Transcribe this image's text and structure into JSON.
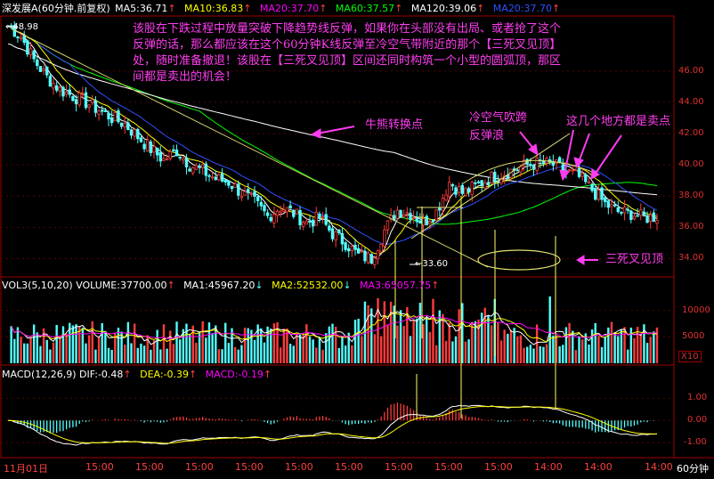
{
  "header": {
    "stock": "深发展A",
    "period": "(60分钟.前复权)",
    "ma5": "MA5:36.71",
    "ma10": "MA10:36.83",
    "ma20": "MA20:37.70",
    "ma60": "MA60:37.57",
    "ma120": "MA120:39.06",
    "extra": "MA20:37.70"
  },
  "vol_header": {
    "name": "VOL3(5,10,20)",
    "volume": "VOLUME:37700.00",
    "ma1": "MA1:45967.20",
    "ma2": "MA2:52532.00",
    "ma3": "MA3:65057.75"
  },
  "macd_header": {
    "name": "MACD(12,26,9)",
    "dif": "DIF:-0.48",
    "dea": "DEA:-0.39",
    "macd": "MACD:-0.19"
  },
  "annotations": {
    "main_text": [
      "该股在下跌过程中放量突破下降趋势线反弹，如果你在头部没有出局、或者抢了这个",
      "反弹的话，那么都应该在这个60分钟K线反弹至冷空气带附近的那个【三死叉见顶】",
      "处，随时准备撤退！该股在【三死叉见顶】区间还同时构筑一个小型的圆弧顶，那区",
      "间都是卖出的机会！"
    ],
    "turning_point": "牛熊转换点",
    "cold_air": [
      "冷空气吹跨",
      "反弹浪"
    ],
    "sell_points": "这几个地方都是卖点",
    "triple_dead_cross": "三死叉见顶"
  },
  "price_labels": {
    "high": "48.98",
    "low": "33.60"
  },
  "time_axis": [
    "11月01日",
    "15:00",
    "15:00",
    "15:00",
    "15:00",
    "15:00",
    "15:00",
    "15:00",
    "15:00",
    "15:00",
    "14:00",
    "14:00",
    "14:00"
  ],
  "period_label": "60分钟",
  "scale_label": "X10",
  "colors": {
    "up": "#ff3c3c",
    "down": "#54ffff",
    "ma5": "#ffffff",
    "ma10": "#ffff00",
    "ma20": "#ff00ff",
    "ma60": "#00ff00",
    "ma120": "#ffffff",
    "extra_line": "#3050ff",
    "annotation": "#ff3df0"
  },
  "chart_data": {
    "type": "candlestick",
    "price_axis": {
      "ticks": [
        34,
        36,
        38,
        40,
        42,
        44,
        46
      ],
      "ylim": [
        33.0,
        49.4
      ]
    },
    "volume_axis": {
      "ticks": [
        5000,
        10000
      ],
      "unit": "X10"
    },
    "macd_axis": {
      "ticks": [
        -1,
        0,
        1
      ]
    },
    "close_path": [
      [
        0,
        48.9
      ],
      [
        4,
        48.2
      ],
      [
        8,
        46.7
      ],
      [
        12,
        45.6
      ],
      [
        16,
        44.8
      ],
      [
        20,
        44.4
      ],
      [
        24,
        44.0
      ],
      [
        28,
        43.5
      ],
      [
        32,
        43.0
      ],
      [
        36,
        42.6
      ],
      [
        40,
        41.8
      ],
      [
        44,
        41.0
      ],
      [
        48,
        40.3
      ],
      [
        52,
        40.9
      ],
      [
        56,
        40.0
      ],
      [
        60,
        39.6
      ],
      [
        64,
        39.1
      ],
      [
        68,
        38.9
      ],
      [
        72,
        38.2
      ],
      [
        76,
        37.6
      ],
      [
        80,
        36.7
      ],
      [
        84,
        37.3
      ],
      [
        88,
        36.9
      ],
      [
        92,
        36.3
      ],
      [
        96,
        36.6
      ],
      [
        100,
        35.6
      ],
      [
        104,
        35.0
      ],
      [
        108,
        34.2
      ],
      [
        112,
        34.0
      ],
      [
        116,
        35.8
      ],
      [
        120,
        37.1
      ],
      [
        124,
        36.9
      ],
      [
        128,
        36.3
      ],
      [
        132,
        37.0
      ],
      [
        136,
        38.9
      ],
      [
        140,
        38.2
      ],
      [
        144,
        38.6
      ],
      [
        148,
        39.1
      ],
      [
        152,
        39.4
      ],
      [
        156,
        39.7
      ],
      [
        160,
        40.0
      ],
      [
        164,
        40.1
      ],
      [
        168,
        40.0
      ],
      [
        172,
        39.6
      ],
      [
        176,
        39.2
      ],
      [
        180,
        38.4
      ],
      [
        184,
        37.5
      ],
      [
        188,
        37.0
      ],
      [
        192,
        36.9
      ],
      [
        196,
        36.6
      ],
      [
        200,
        36.7
      ]
    ],
    "annotated_points": {
      "high": 48.98,
      "low": 33.6
    },
    "series": [
      {
        "name": "MA5",
        "last": 36.71
      },
      {
        "name": "MA10",
        "last": 36.83
      },
      {
        "name": "MA20",
        "last": 37.7
      },
      {
        "name": "MA60",
        "last": 37.57
      },
      {
        "name": "MA120",
        "last": 39.06
      }
    ],
    "volume_series": [
      {
        "name": "VOLUME",
        "last": 37700.0
      },
      {
        "name": "MA1",
        "last": 45967.2
      },
      {
        "name": "MA2",
        "last": 52532.0
      },
      {
        "name": "MA3",
        "last": 65057.75
      }
    ],
    "macd_series": [
      {
        "name": "DIF",
        "last": -0.48
      },
      {
        "name": "DEA",
        "last": -0.39
      },
      {
        "name": "MACD",
        "last": -0.19
      }
    ]
  }
}
